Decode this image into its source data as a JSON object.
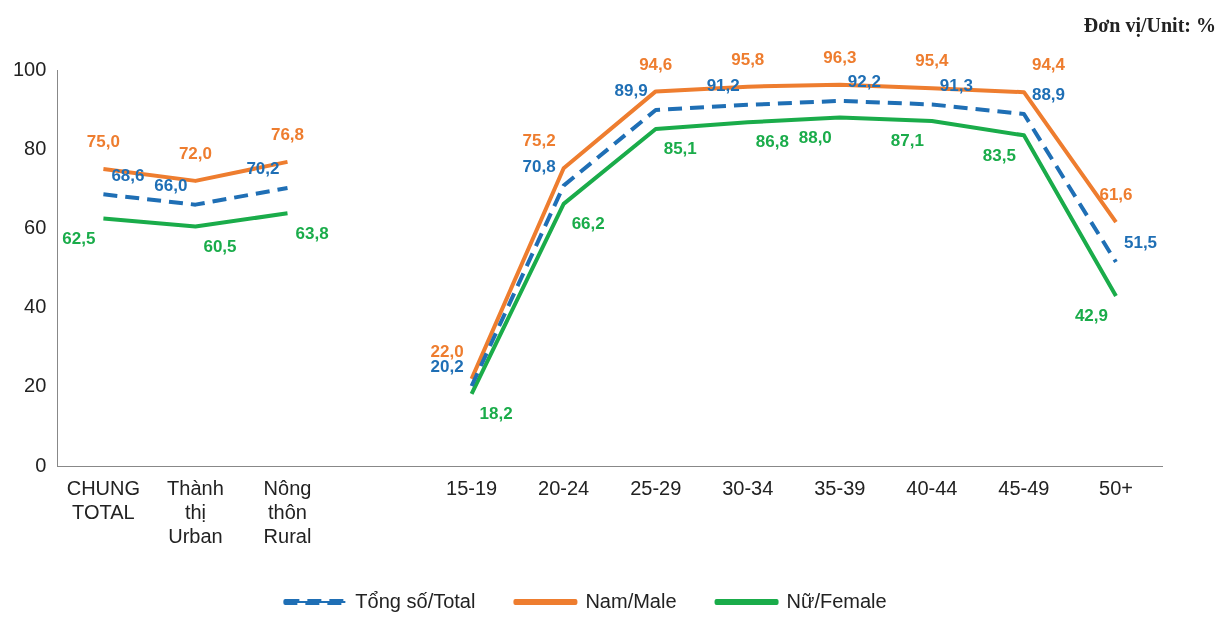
{
  "chart_data": {
    "type": "line",
    "categories": [
      "CHUNG\nTOTAL",
      "Thành\nthị\nUrban",
      "Nông\nthôn\nRural",
      null,
      "15-19",
      "20-24",
      "25-29",
      "30-34",
      "35-39",
      "40-44",
      "45-49",
      "50+"
    ],
    "series": [
      {
        "name": "Tổng số/Total",
        "color": "#1f6fb5",
        "line_style": "dashed",
        "values": [
          68.6,
          66.0,
          70.2,
          null,
          20.2,
          70.8,
          89.9,
          91.2,
          92.2,
          91.3,
          88.9,
          51.5
        ],
        "value_labels": [
          "68,6",
          "66,0",
          "70,2",
          null,
          "20,2",
          "70,8",
          "89,9",
          "91,2",
          "92,2",
          "91,3",
          "88,9",
          "51,5"
        ]
      },
      {
        "name": "Nam/Male",
        "color": "#ee7d2f",
        "line_style": "solid",
        "values": [
          75.0,
          72.0,
          76.8,
          null,
          22.0,
          75.2,
          94.6,
          95.8,
          96.3,
          95.4,
          94.4,
          61.6
        ],
        "value_labels": [
          "75,0",
          "72,0",
          "76,8",
          null,
          "22,0",
          "75,2",
          "94,6",
          "95,8",
          "96,3",
          "95,4",
          "94,4",
          "61,6"
        ]
      },
      {
        "name": "Nữ/Female",
        "color": "#1aac4a",
        "line_style": "solid",
        "values": [
          62.5,
          60.5,
          63.8,
          null,
          18.2,
          66.2,
          85.1,
          86.8,
          88.0,
          87.1,
          83.5,
          42.9
        ],
        "value_labels": [
          "62,5",
          "60,5",
          "63,8",
          null,
          "18,2",
          "66,2",
          "85,1",
          "86,8",
          "88,0",
          "87,1",
          "83,5",
          "42,9"
        ]
      }
    ],
    "ylim": [
      0,
      100
    ],
    "yticks": [
      0,
      20,
      40,
      60,
      80,
      100
    ],
    "grid": false,
    "legend": "bottom",
    "marker": "none",
    "annotations": [
      "Đơn vị/Unit: %"
    ]
  }
}
